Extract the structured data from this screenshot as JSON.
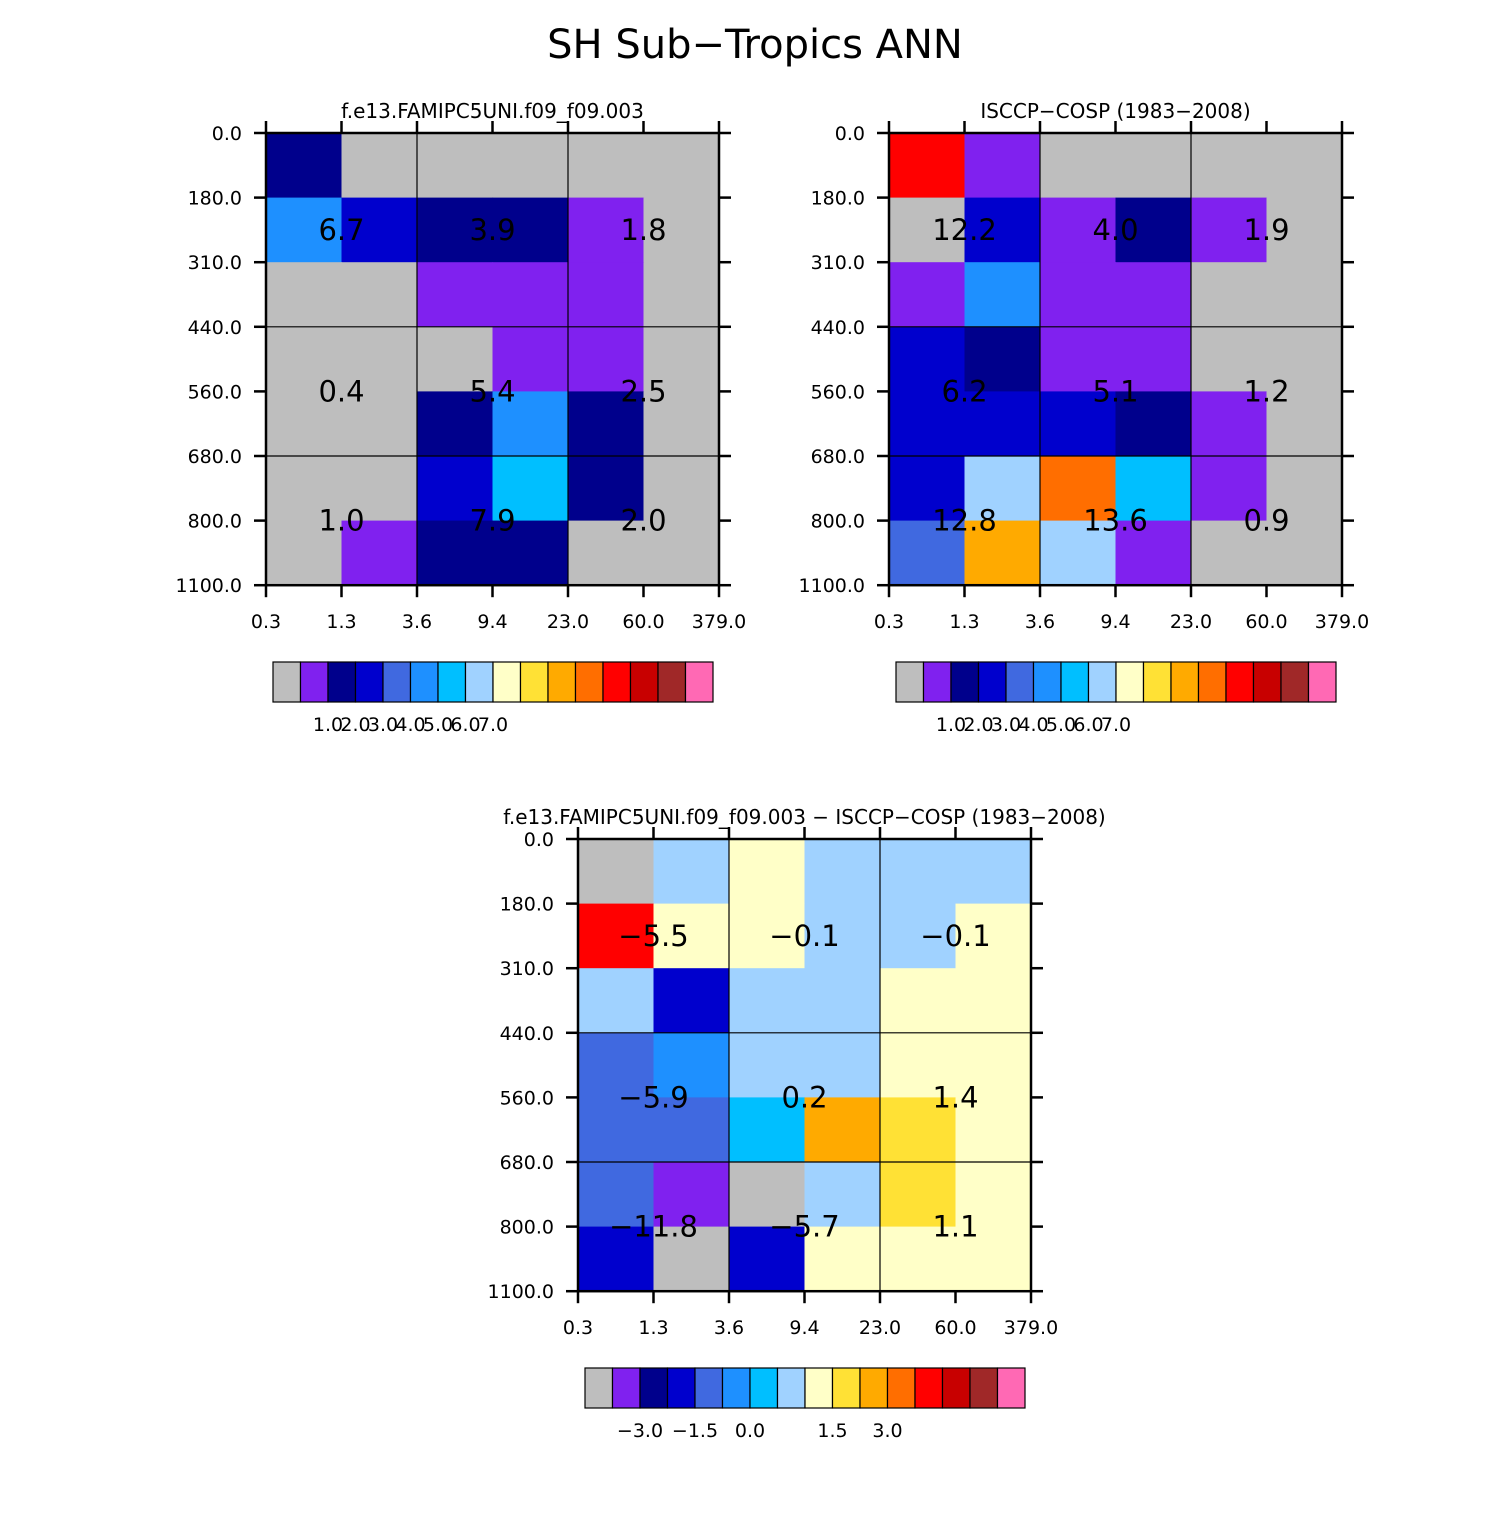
{
  "title": "SH Sub−Tropics ANN",
  "x_tick_labels": [
    "0.3",
    "1.3",
    "3.6",
    "9.4",
    "23.0",
    "60.0",
    "379.0"
  ],
  "y_tick_labels": [
    "0.0",
    "180.0",
    "310.0",
    "440.0",
    "560.0",
    "680.0",
    "800.0",
    "1100.0"
  ],
  "palette": [
    "#bebebe",
    "#8021ef",
    "#00008c",
    "#0000cd",
    "#4069e0",
    "#1e90ff",
    "#00bfff",
    "#a0d2ff",
    "#ffffc8",
    "#ffe135",
    "#ffaa00",
    "#ff6e00",
    "#ff0000",
    "#c80000",
    "#a02828",
    "#ff69b4"
  ],
  "chart_data": [
    {
      "type": "heatmap",
      "title": "f.e13.FAMIPC5UNI.f09_f09.003",
      "x_bins": [
        "0.3",
        "1.3",
        "3.6",
        "9.4",
        "23.0",
        "60.0",
        "379.0"
      ],
      "y_bins": [
        "0.0",
        "180.0",
        "310.0",
        "440.0",
        "560.0",
        "680.0",
        "800.0",
        "1100.0"
      ],
      "cell_colors": [
        [
          "#00008c",
          "#bebebe",
          "#bebebe",
          "#bebebe",
          "#bebebe",
          "#bebebe"
        ],
        [
          "#1e90ff",
          "#0000cd",
          "#00008c",
          "#00008c",
          "#8021ef",
          "#bebebe"
        ],
        [
          "#bebebe",
          "#bebebe",
          "#8021ef",
          "#8021ef",
          "#8021ef",
          "#bebebe"
        ],
        [
          "#bebebe",
          "#bebebe",
          "#bebebe",
          "#8021ef",
          "#8021ef",
          "#bebebe"
        ],
        [
          "#bebebe",
          "#bebebe",
          "#00008c",
          "#1e90ff",
          "#00008c",
          "#bebebe"
        ],
        [
          "#bebebe",
          "#bebebe",
          "#0000cd",
          "#00bfff",
          "#00008c",
          "#bebebe"
        ],
        [
          "#bebebe",
          "#8021ef",
          "#00008c",
          "#00008c",
          "#bebebe",
          "#bebebe"
        ]
      ],
      "group_values": [
        [
          "6.7",
          "3.9",
          "1.8"
        ],
        [
          "0.4",
          "5.4",
          "2.5"
        ],
        [
          "1.0",
          "7.9",
          "2.0"
        ]
      ],
      "colorbar_labels": [
        "1.0",
        "2.0",
        "3.0",
        "4.0",
        "5.0",
        "6.0",
        "7.0"
      ]
    },
    {
      "type": "heatmap",
      "title": "ISCCP−COSP (1983−2008)",
      "x_bins": [
        "0.3",
        "1.3",
        "3.6",
        "9.4",
        "23.0",
        "60.0",
        "379.0"
      ],
      "y_bins": [
        "0.0",
        "180.0",
        "310.0",
        "440.0",
        "560.0",
        "680.0",
        "800.0",
        "1100.0"
      ],
      "cell_colors": [
        [
          "#ff0000",
          "#8021ef",
          "#bebebe",
          "#bebebe",
          "#bebebe",
          "#bebebe"
        ],
        [
          "#bebebe",
          "#0000cd",
          "#8021ef",
          "#00008c",
          "#8021ef",
          "#bebebe"
        ],
        [
          "#8021ef",
          "#1e90ff",
          "#8021ef",
          "#8021ef",
          "#bebebe",
          "#bebebe"
        ],
        [
          "#0000cd",
          "#00008c",
          "#8021ef",
          "#8021ef",
          "#bebebe",
          "#bebebe"
        ],
        [
          "#0000cd",
          "#0000cd",
          "#0000cd",
          "#00008c",
          "#8021ef",
          "#bebebe"
        ],
        [
          "#0000cd",
          "#a0d2ff",
          "#ff6e00",
          "#00bfff",
          "#8021ef",
          "#bebebe"
        ],
        [
          "#4069e0",
          "#ffaa00",
          "#a0d2ff",
          "#8021ef",
          "#bebebe",
          "#bebebe"
        ]
      ],
      "group_values": [
        [
          "12.2",
          "4.0",
          "1.9"
        ],
        [
          "6.2",
          "5.1",
          "1.2"
        ],
        [
          "12.8",
          "13.6",
          "0.9"
        ]
      ],
      "colorbar_labels": [
        "1.0",
        "2.0",
        "3.0",
        "4.0",
        "5.0",
        "6.0",
        "7.0"
      ]
    },
    {
      "type": "heatmap",
      "title": "f.e13.FAMIPC5UNI.f09_f09.003 − ISCCP−COSP (1983−2008)",
      "x_bins": [
        "0.3",
        "1.3",
        "3.6",
        "9.4",
        "23.0",
        "60.0",
        "379.0"
      ],
      "y_bins": [
        "0.0",
        "180.0",
        "310.0",
        "440.0",
        "560.0",
        "680.0",
        "800.0",
        "1100.0"
      ],
      "cell_colors": [
        [
          "#bebebe",
          "#a0d2ff",
          "#ffffc8",
          "#a0d2ff",
          "#a0d2ff",
          "#a0d2ff"
        ],
        [
          "#ff0000",
          "#ffffc8",
          "#ffffc8",
          "#a0d2ff",
          "#a0d2ff",
          "#ffffc8"
        ],
        [
          "#a0d2ff",
          "#0000cd",
          "#a0d2ff",
          "#a0d2ff",
          "#ffffc8",
          "#ffffc8"
        ],
        [
          "#4069e0",
          "#1e90ff",
          "#a0d2ff",
          "#a0d2ff",
          "#ffffc8",
          "#ffffc8"
        ],
        [
          "#4069e0",
          "#4069e0",
          "#00bfff",
          "#ffaa00",
          "#ffe135",
          "#ffffc8"
        ],
        [
          "#4069e0",
          "#8021ef",
          "#bebebe",
          "#a0d2ff",
          "#ffe135",
          "#ffffc8"
        ],
        [
          "#0000cd",
          "#bebebe",
          "#0000cd",
          "#ffffc8",
          "#ffffc8",
          "#ffffc8"
        ]
      ],
      "group_values": [
        [
          "−5.5",
          "−0.1",
          "−0.1"
        ],
        [
          "−5.9",
          "0.2",
          "1.4"
        ],
        [
          "−11.8",
          "−5.7",
          "1.1"
        ]
      ],
      "colorbar_labels": [
        "−3.0",
        "−1.5",
        "0.0",
        "1.5",
        "3.0"
      ]
    }
  ]
}
